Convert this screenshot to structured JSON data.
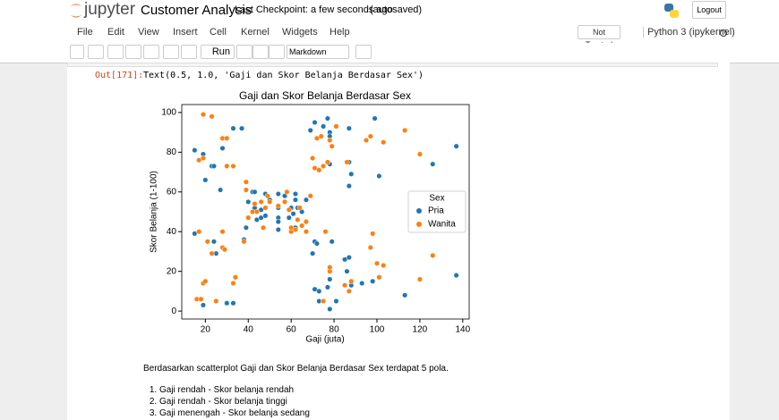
{
  "header": {
    "logo_text": "jupyter",
    "notebook_name": "Customer Analysis",
    "checkpoint": "Last Checkpoint: a few seconds ago",
    "autosave": "(autosaved)",
    "logout": "Logout"
  },
  "menu": [
    "File",
    "Edit",
    "View",
    "Insert",
    "Cell",
    "Kernel",
    "Widgets",
    "Help"
  ],
  "trusted": "Not Trusted",
  "kernel": "Python 3 (ipykernel)",
  "toolbar": {
    "run": "Run",
    "cell_type": "Markdown"
  },
  "output": {
    "prompt": "Out[171]:",
    "text": "Text(0.5, 1.0, 'Gaji dan Skor Belanja Berdasar Sex')"
  },
  "chart_data": {
    "type": "scatter",
    "title": "Gaji dan Skor Belanja Berdasar Sex",
    "x_label": "Gaji (juta)",
    "y_label": "Skor Belanja (1-100)",
    "xlim": [
      9,
      143
    ],
    "ylim": [
      -4,
      104
    ],
    "xticks": [
      20,
      40,
      60,
      80,
      100,
      120,
      140
    ],
    "yticks": [
      0,
      20,
      40,
      60,
      80,
      100
    ],
    "legend_title": "Sex",
    "legend_loc": "center right",
    "series": [
      {
        "name": "Pria",
        "color": "#1f77b4",
        "x": [
          15,
          15,
          19,
          19,
          20,
          23,
          24,
          24,
          25,
          27,
          28,
          30,
          33,
          33,
          37,
          38,
          39,
          40,
          42,
          43,
          43,
          44,
          46,
          46,
          48,
          48,
          50,
          54,
          54,
          54,
          54,
          54,
          57,
          59,
          60,
          61,
          62,
          62,
          62,
          63,
          65,
          67,
          69,
          70,
          71,
          71,
          71,
          72,
          73,
          73,
          75,
          77,
          77,
          78,
          78,
          78,
          78,
          78,
          79,
          81,
          85,
          86,
          87,
          87,
          87,
          87,
          88,
          88,
          93,
          97,
          98,
          99,
          101,
          103,
          113,
          126,
          137,
          137
        ],
        "y": [
          81,
          39,
          79,
          3,
          66,
          73,
          73,
          35,
          29,
          61,
          82,
          4,
          92,
          4,
          92,
          36,
          42,
          55,
          60,
          60,
          52,
          46,
          51,
          47,
          48,
          59,
          56,
          47,
          52,
          45,
          41,
          59,
          58,
          47,
          52,
          49,
          56,
          42,
          59,
          52,
          50,
          56,
          91,
          29,
          11,
          35,
          95,
          34,
          10,
          5,
          93,
          12,
          97,
          1,
          90,
          74,
          16,
          88,
          35,
          5,
          26,
          20,
          63,
          75,
          27,
          92,
          13,
          69,
          14,
          32,
          15,
          97,
          68,
          23,
          8,
          74,
          18,
          83
        ]
      },
      {
        "name": "Wanita",
        "color": "#ff7f0e",
        "x": [
          16,
          17,
          17,
          18,
          19,
          19,
          19,
          20,
          21,
          23,
          23,
          25,
          28,
          28,
          28,
          29,
          30,
          30,
          33,
          33,
          34,
          38,
          39,
          39,
          40,
          42,
          43,
          44,
          46,
          47,
          48,
          49,
          50,
          54,
          57,
          58,
          59,
          60,
          60,
          62,
          63,
          64,
          65,
          67,
          67,
          69,
          70,
          71,
          72,
          73,
          74,
          75,
          75,
          76,
          77,
          78,
          78,
          78,
          79,
          81,
          85,
          86,
          87,
          88,
          95,
          97,
          97,
          98,
          100,
          101,
          103,
          103,
          113,
          120,
          120,
          126
        ],
        "y": [
          6,
          40,
          76,
          6,
          99,
          77,
          14,
          15,
          35,
          98,
          29,
          5,
          87,
          32,
          40,
          31,
          73,
          87,
          14,
          73,
          17,
          35,
          65,
          61,
          47,
          50,
          54,
          50,
          55,
          42,
          52,
          58,
          55,
          53,
          55,
          60,
          51,
          40,
          42,
          41,
          46,
          52,
          43,
          45,
          40,
          58,
          77,
          72,
          87,
          71,
          88,
          73,
          5,
          40,
          75,
          86,
          20,
          22,
          83,
          93,
          13,
          75,
          10,
          15,
          86,
          88,
          32,
          39,
          24,
          17,
          85,
          23,
          91,
          16,
          79,
          28
        ]
      }
    ]
  },
  "markdown": {
    "paragraph": "Berdasarkan scatterplot Gaji dan Skor Belanja Berdasar Sex terdapat 5 pola.",
    "items": [
      "Gaji rendah - Skor belanja rendah",
      "Gaji rendah - Skor belanja tinggi",
      "Gaji menengah - Skor belanja sedang"
    ]
  }
}
